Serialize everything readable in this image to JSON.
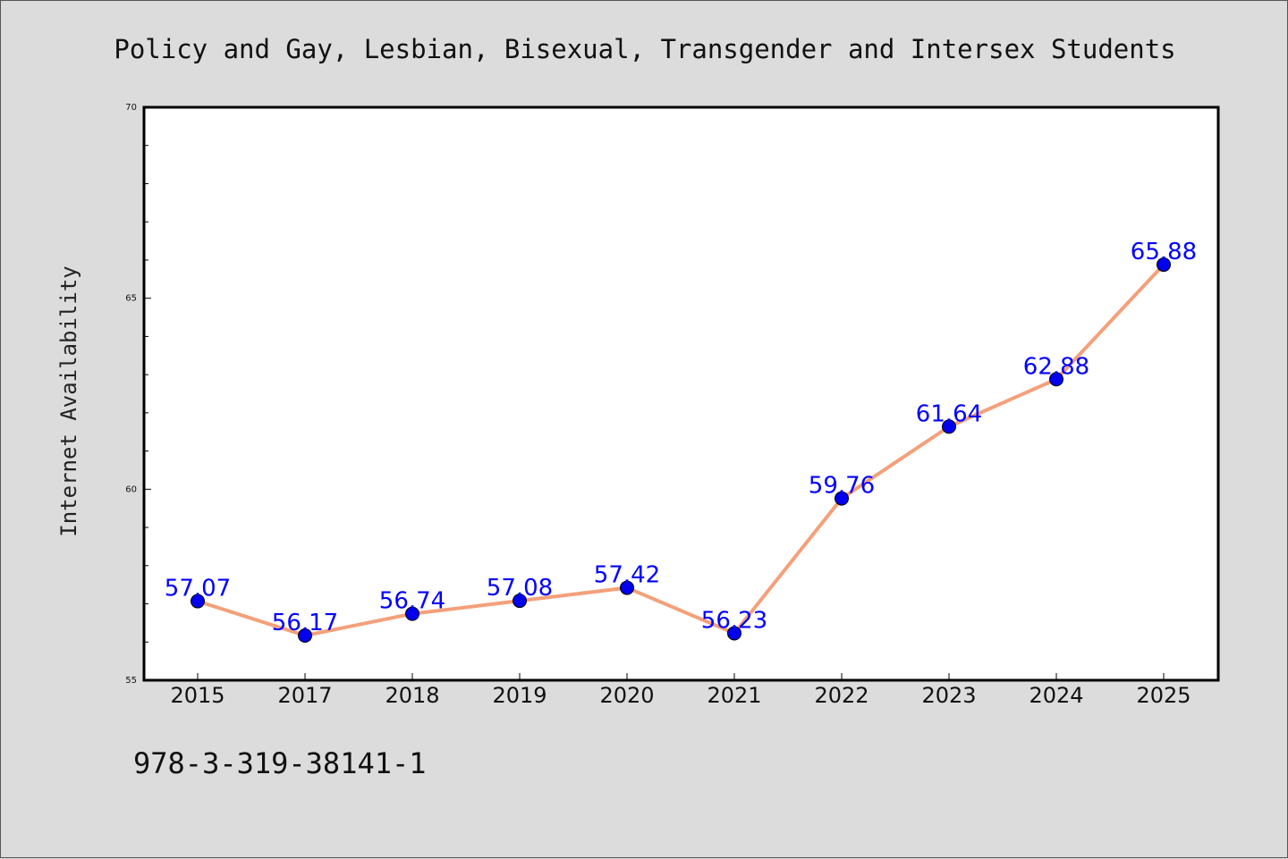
{
  "chart_data": {
    "type": "line",
    "title": "Policy and Gay, Lesbian, Bisexual, Transgender and Intersex Students",
    "xlabel": "",
    "ylabel": "Internet Availability",
    "categories": [
      "2015",
      "2017",
      "2018",
      "2019",
      "2020",
      "2021",
      "2022",
      "2023",
      "2024",
      "2025"
    ],
    "series": [
      {
        "values": [
          57.07,
          56.17,
          56.74,
          57.08,
          57.42,
          56.23,
          59.76,
          61.64,
          62.88,
          65.88
        ],
        "line_color": "#f4a07a",
        "marker_color": "#0000ee"
      }
    ],
    "data_labels": [
      "57.07",
      "56.17",
      "56.74",
      "57.08",
      "57.42",
      "56.23",
      "59.76",
      "61.64",
      "62.88",
      "65.88"
    ],
    "ylim": [
      55,
      70
    ],
    "yticks": [
      "55",
      "60",
      "65",
      "70"
    ],
    "grid": false,
    "label_color": "#0000ff"
  },
  "footer": {
    "isbn": "978-3-319-38141-1"
  }
}
